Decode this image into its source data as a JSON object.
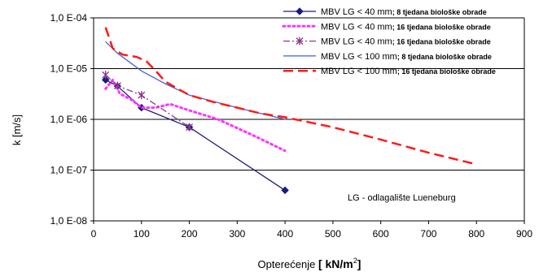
{
  "chart_data": {
    "type": "line",
    "ylabel": "k [m/s]",
    "xlabel_main": "Opterećenje ",
    "xlabel_unit": "[ kN/m",
    "xlabel_sup": "2",
    "xlabel_close": "]",
    "xlim": [
      0,
      900
    ],
    "ylim": [
      1e-08,
      0.0001
    ],
    "yscale": "log",
    "grid": "horizontal",
    "legend_position": "top-right",
    "annotation": "LG - odlagalište Lueneburg",
    "x_ticks": [
      "0",
      "100",
      "200",
      "300",
      "400",
      "500",
      "600",
      "700",
      "800",
      "900"
    ],
    "y_ticks": [
      "1,0 E-04",
      "1,0 E-05",
      "1,0 E-06",
      "1,0 E-07",
      "1,0 E-08"
    ],
    "series": [
      {
        "name": "MBV LG < 40 mm",
        "name_suffix": "; 8 tjedana biološke obrade",
        "color": "#1a1a80",
        "style": "solid",
        "marker": "diamond",
        "x": [
          25,
          50,
          100,
          200,
          400
        ],
        "y": [
          6e-06,
          4.5e-06,
          1.7e-06,
          7e-07,
          4e-08
        ]
      },
      {
        "name": "MBV LG < 40 mm",
        "name_suffix": "; 16 tjedana biološke obrade",
        "color": "#ff33ff",
        "style": "dotted",
        "marker": "none",
        "x": [
          25,
          40,
          55,
          80,
          100,
          130,
          160,
          200,
          260,
          330,
          400
        ],
        "y": [
          4e-06,
          6e-06,
          3.2e-06,
          2.4e-06,
          1.7e-06,
          1.7e-06,
          2e-06,
          1.5e-06,
          1e-06,
          5e-07,
          2.4e-07
        ]
      },
      {
        "name": "MBV LG < 40 mm",
        "name_suffix": "; 16 tjedana biološke obrade",
        "color": "#8b3a8b",
        "style": "dashdot",
        "marker": "asterisk",
        "x": [
          25,
          50,
          100,
          200
        ],
        "y": [
          7.5e-06,
          4.6e-06,
          3e-06,
          7e-07
        ]
      },
      {
        "name": "MBV LG < 100 mm",
        "name_suffix": "; 8 tjedana biološke obrade",
        "color": "#4060e0",
        "style": "solid",
        "marker": "none",
        "x": [
          25,
          50,
          100,
          150,
          200,
          300,
          400
        ],
        "y": [
          3.4e-05,
          2e-05,
          9e-06,
          5e-06,
          3e-06,
          1.7e-06,
          1e-06
        ]
      },
      {
        "name": "MBV LG < 100 mm",
        "name_suffix": "; 16 tjedana biološke obrade",
        "color": "#ff1a1a",
        "style": "dashed",
        "marker": "none",
        "x": [
          25,
          40,
          60,
          90,
          110,
          130,
          150,
          200,
          250,
          300,
          350,
          400,
          500,
          600,
          700,
          800
        ],
        "y": [
          6.5e-05,
          2.5e-05,
          1.9e-05,
          1.7e-05,
          1.4e-05,
          9e-06,
          5.5e-06,
          3e-06,
          2.2e-06,
          1.7e-06,
          1.3e-06,
          1.1e-06,
          7e-07,
          4e-07,
          2.2e-07,
          1.3e-07
        ]
      }
    ]
  }
}
